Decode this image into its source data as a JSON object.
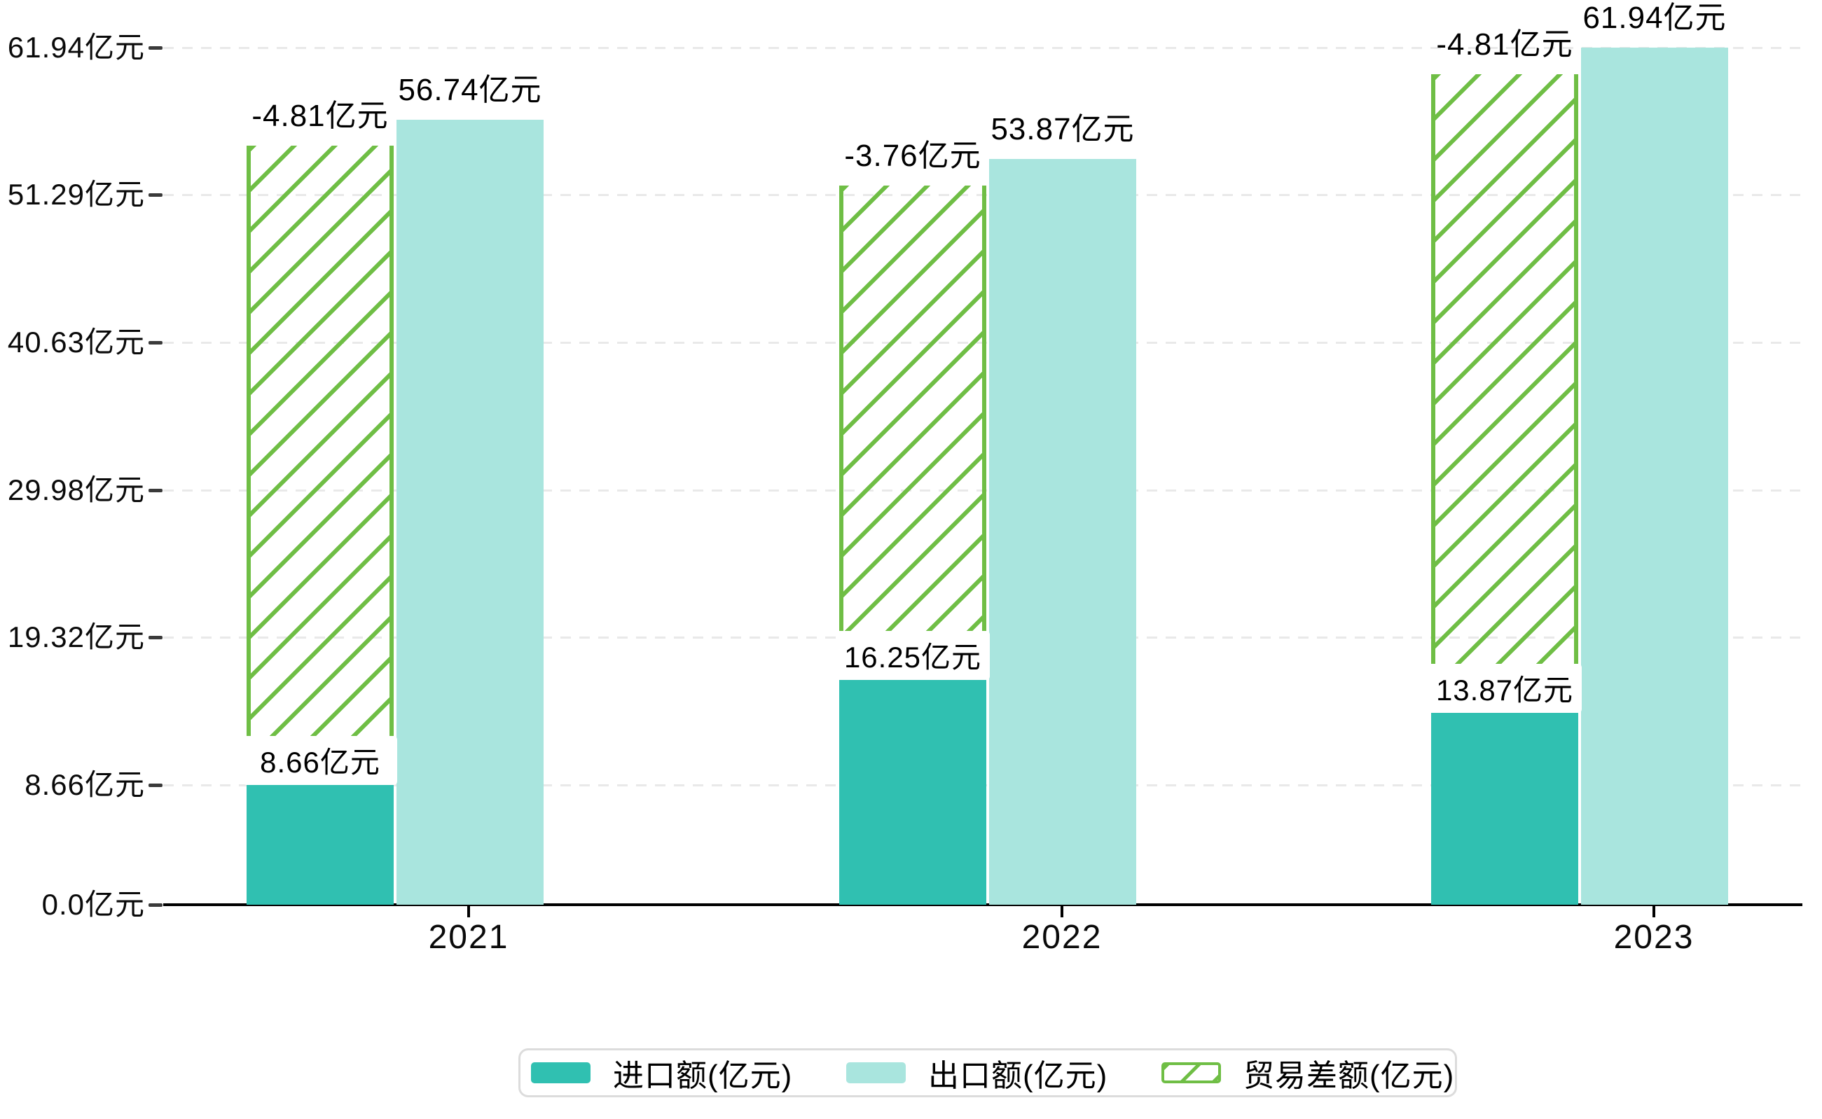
{
  "chart_data": {
    "type": "bar",
    "title": "",
    "categories": [
      "2021",
      "2022",
      "2023"
    ],
    "unit": "亿元",
    "grid": true,
    "legend_position": "bottom",
    "y_axis": {
      "max": 61.94,
      "ticks": [
        {
          "value": 0,
          "label": "0.0亿元"
        },
        {
          "value": 8.66,
          "label": "8.66亿元"
        },
        {
          "value": 19.32,
          "label": "19.32亿元"
        },
        {
          "value": 29.98,
          "label": "29.98亿元"
        },
        {
          "value": 40.63,
          "label": "40.63亿元"
        },
        {
          "value": 51.29,
          "label": "51.29亿元"
        },
        {
          "value": 61.94,
          "label": "61.94亿元"
        }
      ]
    },
    "series": [
      {
        "name": "进口额(亿元)",
        "style": "solid",
        "color": "#30c0b1",
        "values": [
          8.66,
          16.25,
          13.87
        ],
        "labels": [
          "8.66亿元",
          "16.25亿元",
          "13.87亿元"
        ],
        "label_style": "white-box"
      },
      {
        "name": "出口额(亿元)",
        "style": "solid",
        "color": "#a9e5de",
        "values": [
          56.74,
          53.87,
          61.94
        ],
        "labels": [
          "56.74亿元",
          "53.87亿元",
          "61.94亿元"
        ],
        "label_style": "plain"
      },
      {
        "name": "贸易差额(亿元)",
        "style": "hatched",
        "color": "#6fbe45",
        "values": [
          -4.81,
          -3.76,
          -4.81
        ],
        "labels": [
          "-4.81亿元",
          "-3.76亿元",
          "-4.81亿元"
        ],
        "bar_span": [
          [
            8.66,
            54.84
          ],
          [
            16.25,
            51.97
          ],
          [
            13.87,
            60.04
          ]
        ],
        "label_style": "plain"
      }
    ],
    "legend": [
      "进口额(亿元)",
      "出口额(亿元)",
      "贸易差额(亿元)"
    ]
  }
}
